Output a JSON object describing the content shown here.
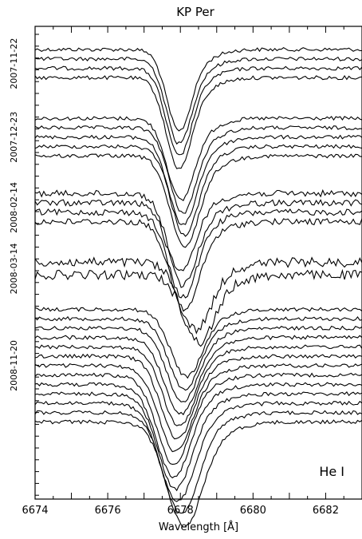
{
  "chart_data": {
    "type": "line",
    "title": "KP Per",
    "xlabel": "Wavelength [Å]",
    "ylabel": "",
    "annotation": "He I",
    "xlim": [
      6674,
      6683
    ],
    "x_ticks": [
      6674,
      6676,
      6678,
      6680,
      6682
    ],
    "x_tick_labels": [
      "6674",
      "6676",
      "6678",
      "6680",
      "6682"
    ],
    "y_ticks_visible": false,
    "grid": false,
    "legend": "none",
    "line_color": "#000000",
    "epochs": [
      {
        "label": "2007-11-22",
        "spectra": [
          {
            "continuum": 0,
            "center": 6677.95,
            "depth": 0.27,
            "width": 0.55,
            "noise": 0.012
          },
          {
            "continuum": 0.03,
            "center": 6677.95,
            "depth": 0.28,
            "width": 0.56,
            "noise": 0.012
          },
          {
            "continuum": 0.06,
            "center": 6677.95,
            "depth": 0.29,
            "width": 0.57,
            "noise": 0.012
          },
          {
            "continuum": 0.09,
            "center": 6677.95,
            "depth": 0.3,
            "width": 0.58,
            "noise": 0.012
          }
        ]
      },
      {
        "label": "2007-12-23",
        "spectra": [
          {
            "continuum": 0.22,
            "center": 6678.0,
            "depth": 0.27,
            "width": 0.6,
            "noise": 0.012
          },
          {
            "continuum": 0.25,
            "center": 6678.05,
            "depth": 0.28,
            "width": 0.6,
            "noise": 0.012
          },
          {
            "continuum": 0.28,
            "center": 6678.05,
            "depth": 0.29,
            "width": 0.62,
            "noise": 0.012
          },
          {
            "continuum": 0.31,
            "center": 6678.1,
            "depth": 0.29,
            "width": 0.62,
            "noise": 0.012
          },
          {
            "continuum": 0.34,
            "center": 6678.1,
            "depth": 0.3,
            "width": 0.64,
            "noise": 0.012
          }
        ]
      },
      {
        "label": "2008-02-14",
        "spectra": [
          {
            "continuum": 0.46,
            "center": 6678.0,
            "depth": 0.26,
            "width": 0.62,
            "noise": 0.02
          },
          {
            "continuum": 0.49,
            "center": 6678.05,
            "depth": 0.27,
            "width": 0.63,
            "noise": 0.02
          },
          {
            "continuum": 0.52,
            "center": 6678.05,
            "depth": 0.28,
            "width": 0.64,
            "noise": 0.02
          },
          {
            "continuum": 0.55,
            "center": 6678.1,
            "depth": 0.29,
            "width": 0.65,
            "noise": 0.02
          }
        ]
      },
      {
        "label": "2008-03-14",
        "spectra": [
          {
            "continuum": 0.68,
            "center": 6678.4,
            "depth": 0.22,
            "width": 0.7,
            "noise": 0.03
          },
          {
            "continuum": 0.72,
            "center": 6678.5,
            "depth": 0.22,
            "width": 0.7,
            "noise": 0.03
          }
        ]
      },
      {
        "label": "2008-11-20",
        "spectra": [
          {
            "continuum": 0.83,
            "center": 6678.15,
            "depth": 0.22,
            "width": 0.7,
            "noise": 0.012
          },
          {
            "continuum": 0.86,
            "center": 6678.1,
            "depth": 0.23,
            "width": 0.7,
            "noise": 0.012
          },
          {
            "continuum": 0.89,
            "center": 6678.05,
            "depth": 0.24,
            "width": 0.7,
            "noise": 0.012
          },
          {
            "continuum": 0.92,
            "center": 6678.0,
            "depth": 0.25,
            "width": 0.72,
            "noise": 0.012
          },
          {
            "continuum": 0.95,
            "center": 6677.95,
            "depth": 0.26,
            "width": 0.72,
            "noise": 0.012
          },
          {
            "continuum": 0.98,
            "center": 6677.9,
            "depth": 0.27,
            "width": 0.72,
            "noise": 0.012
          },
          {
            "continuum": 1.01,
            "center": 6677.85,
            "depth": 0.28,
            "width": 0.74,
            "noise": 0.012
          },
          {
            "continuum": 1.04,
            "center": 6677.8,
            "depth": 0.29,
            "width": 0.74,
            "noise": 0.012
          },
          {
            "continuum": 1.07,
            "center": 6677.8,
            "depth": 0.3,
            "width": 0.76,
            "noise": 0.012
          },
          {
            "continuum": 1.1,
            "center": 6677.85,
            "depth": 0.31,
            "width": 0.76,
            "noise": 0.012
          },
          {
            "continuum": 1.13,
            "center": 6677.9,
            "depth": 0.32,
            "width": 0.78,
            "noise": 0.012
          },
          {
            "continuum": 1.16,
            "center": 6678.0,
            "depth": 0.33,
            "width": 0.78,
            "noise": 0.012
          },
          {
            "continuum": 1.19,
            "center": 6678.1,
            "depth": 0.34,
            "width": 0.8,
            "noise": 0.012
          }
        ]
      }
    ]
  }
}
